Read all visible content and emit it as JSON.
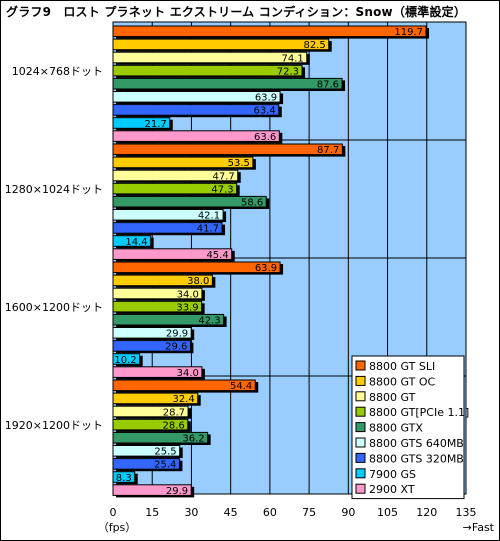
{
  "title": "グラフ9　ロスト プラネット エクストリーム コンディション：Snow（標準設定）",
  "colors": {
    "plot_bg": "#99ccff",
    "series": [
      "#ff6600",
      "#ffcc00",
      "#ffff99",
      "#99cc00",
      "#339966",
      "#ccffff",
      "#3366ff",
      "#00ccff",
      "#ff99cc"
    ]
  },
  "chart_data": {
    "type": "bar",
    "orientation": "horizontal",
    "categories": [
      "1024×768ドット",
      "1280×1024ドット",
      "1600×1200ドット",
      "1920×1200ドット"
    ],
    "series": [
      {
        "name": "8800 GT SLI",
        "values": [
          119.7,
          87.7,
          63.9,
          54.4
        ]
      },
      {
        "name": "8800 GT OC",
        "values": [
          82.5,
          53.5,
          38.0,
          32.4
        ]
      },
      {
        "name": "8800 GT",
        "values": [
          74.1,
          47.7,
          34.0,
          28.7
        ]
      },
      {
        "name": "8800 GT[PCIe 1.1]",
        "values": [
          72.3,
          47.3,
          33.9,
          28.6
        ]
      },
      {
        "name": "8800 GTX",
        "values": [
          87.6,
          58.6,
          42.3,
          36.2
        ]
      },
      {
        "name": "8800 GTS 640MB",
        "values": [
          63.9,
          42.1,
          29.9,
          25.5
        ]
      },
      {
        "name": "8800 GTS 320MB",
        "values": [
          63.4,
          41.7,
          29.6,
          25.4
        ]
      },
      {
        "name": "7900 GS",
        "values": [
          21.7,
          14.4,
          10.2,
          8.3
        ]
      },
      {
        "name": "2900 XT",
        "values": [
          63.6,
          45.4,
          34.0,
          29.9
        ]
      }
    ],
    "value_labels": [
      [
        "119.7",
        "87.7",
        "63.9",
        "54.4"
      ],
      [
        "82.5",
        "53.5",
        "38.0",
        "32.4"
      ],
      [
        "74.1",
        "47.7",
        "34.0",
        "28.7"
      ],
      [
        "72.3",
        "47.3",
        "33.9",
        "28.6"
      ],
      [
        "87.6",
        "58.6",
        "42.3",
        "36.2"
      ],
      [
        "63.9",
        "42.1",
        "29.9",
        "25.5"
      ],
      [
        "63.4",
        "41.7",
        "29.6",
        "25.4"
      ],
      [
        "21.7",
        "14.4",
        "10.2",
        "8.3"
      ],
      [
        "63.6",
        "45.4",
        "34.0",
        "29.9"
      ]
    ],
    "xlim": [
      0,
      135
    ],
    "xticks": [
      0,
      15,
      30,
      45,
      60,
      75,
      90,
      105,
      120,
      135
    ],
    "xlabel_left": "（fps）",
    "xlabel_right": "→Fast",
    "grid": true,
    "legend_position": "bottom-right"
  }
}
